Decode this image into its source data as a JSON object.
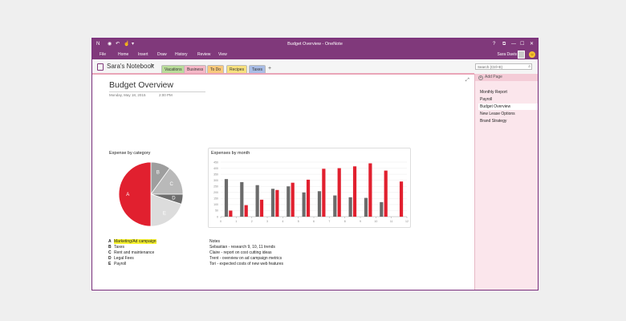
{
  "window": {
    "title": "Budget Overview - OneNote",
    "controls": [
      "?",
      "⧉",
      "—",
      "☐",
      "✕"
    ]
  },
  "ribbon": {
    "tabs": [
      "File",
      "Home",
      "Insert",
      "Draw",
      "History",
      "Review",
      "View"
    ],
    "user": "Sara Davis"
  },
  "notebook": {
    "name": "Sara's Notebook",
    "sections": [
      {
        "label": "Vacations",
        "color": "#b9dc9a"
      },
      {
        "label": "Business",
        "color": "#f5b8c7"
      },
      {
        "label": "To Do",
        "color": "#f9c97c"
      },
      {
        "label": "Recipes",
        "color": "#f7e07e"
      },
      {
        "label": "Taxes",
        "color": "#a9bde6"
      }
    ],
    "add_section": "+",
    "search_placeholder": "Search (Ctrl+E)"
  },
  "pages": {
    "add_page": "Add Page",
    "items": [
      "Monthly Report",
      "Payroll",
      "Budget Overview",
      "New Lease Options",
      "Brand Strategy"
    ],
    "selected": "Budget Overview"
  },
  "page": {
    "title": "Budget Overview",
    "date": "Monday, May 18, 2015",
    "time": "2:00 PM"
  },
  "pie_title": "Expense by category",
  "bar_title": "Expenses by month",
  "chart_data": [
    {
      "type": "pie",
      "title": "Expense by category",
      "categories": [
        "A",
        "B",
        "C",
        "D",
        "E"
      ],
      "values": [
        50,
        10,
        15,
        5,
        20
      ],
      "colors": [
        "#e1202f",
        "#9e9e9e",
        "#b9b9b9",
        "#6d6d6d",
        "#dcdcdc"
      ]
    },
    {
      "type": "bar",
      "title": "Expenses by month",
      "categories": [
        "1",
        "2",
        "3",
        "4",
        "5",
        "6",
        "7",
        "8",
        "9",
        "10",
        "11",
        "12"
      ],
      "x_labels": [
        "0",
        "1",
        "2",
        "3",
        "4",
        "5",
        "6",
        "7",
        "8",
        "9",
        "10",
        "11",
        "12"
      ],
      "y_ticks": [
        "450",
        "400",
        "350",
        "300",
        "250",
        "200",
        "150",
        "100",
        "50",
        "0"
      ],
      "ylim": [
        0,
        450
      ],
      "grid": true,
      "series": [
        {
          "values": [
            310,
            285,
            260,
            230,
            250,
            200,
            210,
            175,
            160,
            155,
            120,
            0
          ],
          "color": "#6b6b6b"
        },
        {
          "values": [
            50,
            95,
            140,
            220,
            280,
            305,
            395,
            400,
            415,
            440,
            380,
            290
          ],
          "color": "#e1202f"
        }
      ]
    }
  ],
  "legend": [
    {
      "key": "A",
      "label": "Marketing/Ad campaign",
      "highlight": true
    },
    {
      "key": "B",
      "label": "Taxes",
      "highlight": false
    },
    {
      "key": "C",
      "label": "Rent and maintenance",
      "highlight": false
    },
    {
      "key": "D",
      "label": "Legal Fees",
      "highlight": false
    },
    {
      "key": "E",
      "label": "Payroll",
      "highlight": false
    }
  ],
  "notes": {
    "heading": "Notes",
    "lines": [
      "Sebastian - research 9, 10, 11 trends",
      "Claire - report on cost cutting ideas",
      "Trent - overview on ad campaign metrics",
      "Tori - expected costs of new web features"
    ]
  }
}
